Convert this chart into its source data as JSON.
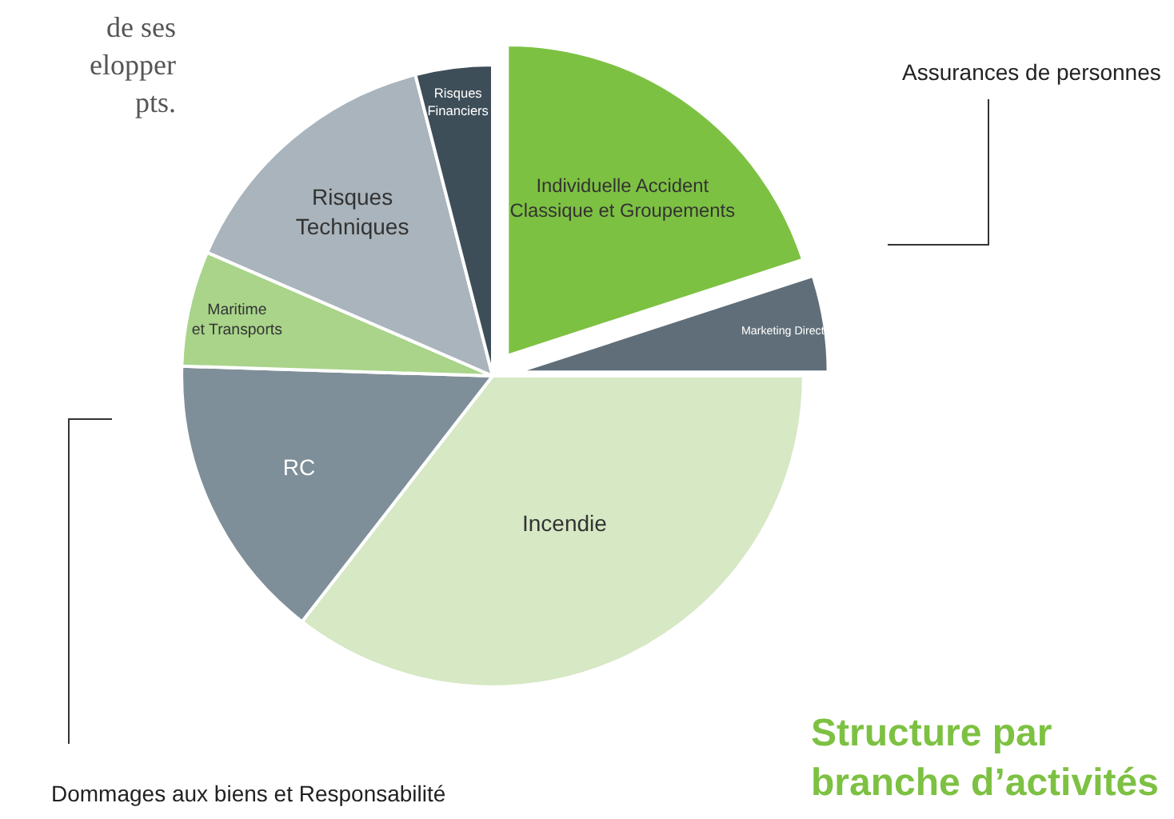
{
  "chart_data": {
    "type": "pie",
    "title": "Structure par\nbranche d’activités",
    "categories": [
      "Individuelle Accident\nClassique et Groupements",
      "Marketing Direct",
      "Incendie",
      "RC",
      "Maritime\net Transports",
      "Risques\nTechniques",
      "Risques\nFinanciers"
    ],
    "values": [
      20,
      5,
      35.5,
      15,
      6,
      14.5,
      4
    ],
    "colors": [
      "#7dc142",
      "#5f6e78",
      "#d6e8c4",
      "#7f8f99",
      "#a9d48a",
      "#a9b4bc",
      "#3e4e58"
    ],
    "annotations": [
      "de ses\nelopper\npts.",
      "Assurances de personnes",
      "Dommages aux biens et Responsabilité"
    ],
    "legend": false
  }
}
